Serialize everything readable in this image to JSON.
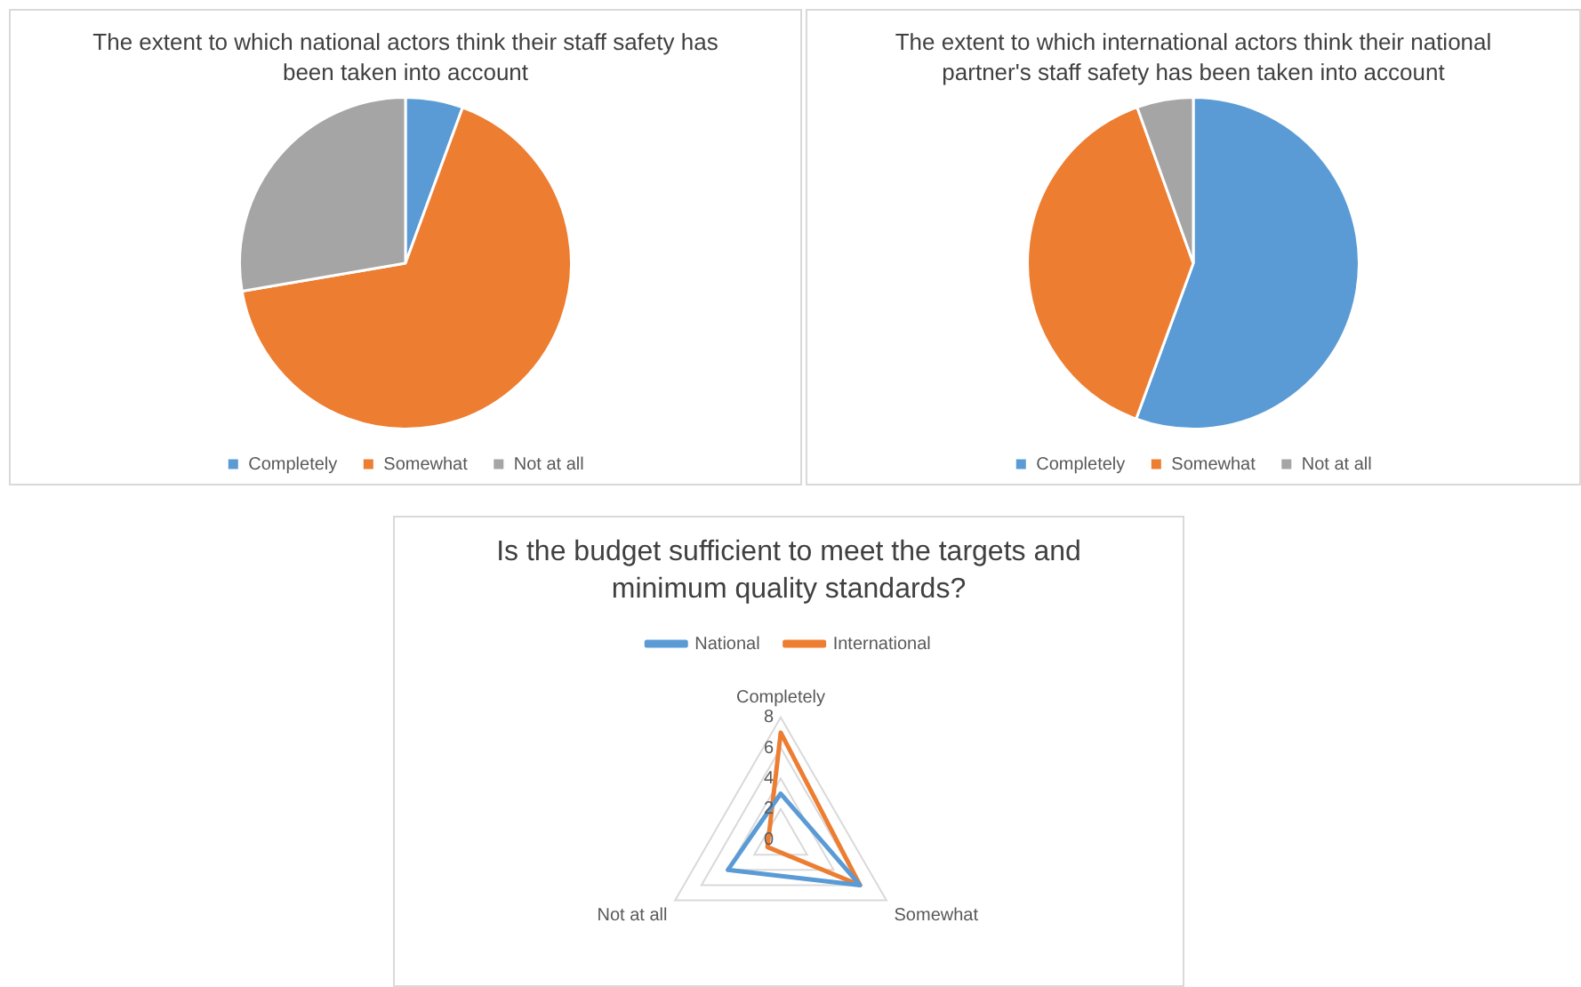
{
  "chart_data": [
    {
      "type": "pie",
      "title": "The extent to which national actors think their staff safety has been taken into account",
      "categories": [
        "Completely",
        "Somewhat",
        "Not at all"
      ],
      "values": [
        5.6,
        66.7,
        27.7
      ],
      "colors": [
        "#5b9bd5",
        "#ed7d31",
        "#a5a5a5"
      ],
      "legend": "bottom"
    },
    {
      "type": "pie",
      "title": "The extent to which international actors think their national partner's staff safety has been taken into account",
      "categories": [
        "Completely",
        "Somewhat",
        "Not at all"
      ],
      "values": [
        55.6,
        38.9,
        5.5
      ],
      "colors": [
        "#5b9bd5",
        "#ed7d31",
        "#a5a5a5"
      ],
      "legend": "bottom"
    },
    {
      "type": "radar",
      "title": "Is the budget sufficient to meet the targets and minimum quality standards?",
      "categories": [
        "Completely",
        "Somewhat",
        "Not at all"
      ],
      "ylim": [
        0,
        8
      ],
      "yticks": [
        0,
        2,
        4,
        6,
        8
      ],
      "legend": "top",
      "grid": true,
      "series": [
        {
          "name": "National",
          "color": "#5b9bd5",
          "values": [
            3,
            6,
            4
          ]
        },
        {
          "name": "International",
          "color": "#ed7d31",
          "values": [
            7,
            6,
            1
          ]
        }
      ]
    }
  ]
}
